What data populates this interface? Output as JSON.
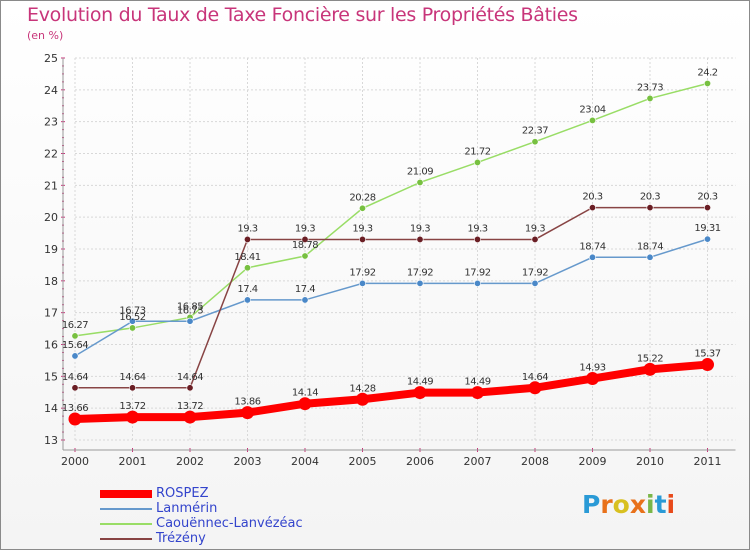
{
  "title": "Evolution du Taux de Taxe Foncière sur les Propriétés Bâties",
  "subtitle": "(en %)",
  "brand": {
    "letters": [
      "P",
      "r",
      "o",
      "x",
      "i",
      "t",
      "i"
    ],
    "colors": [
      "#2a9ad6",
      "#e8711a",
      "#d8c020",
      "#e8711a",
      "#7ab648",
      "#2a9ad6",
      "#e84a1a"
    ]
  },
  "chart_data": {
    "type": "line",
    "x": [
      "2000",
      "2001",
      "2002",
      "2003",
      "2004",
      "2005",
      "2006",
      "2007",
      "2008",
      "2009",
      "2010",
      "2011"
    ],
    "ylim": [
      13,
      25
    ],
    "yticks": [
      "13",
      "14",
      "15",
      "16",
      "17",
      "18",
      "19",
      "20",
      "21",
      "22",
      "23",
      "24",
      "25"
    ],
    "grid": true,
    "legend_position": "bottom-left",
    "series": [
      {
        "name": "Caouënnec-Lanvézéac",
        "color": "#99dd66",
        "marker": "#77c040",
        "values": [
          16.27,
          16.52,
          16.85,
          18.41,
          18.78,
          20.28,
          21.09,
          21.72,
          22.37,
          23.04,
          23.73,
          24.2
        ],
        "labels": [
          "16.27",
          "16.52",
          "16.85",
          "18.41",
          "18.78",
          "20.28",
          "21.09",
          "21.72",
          "22.37",
          "23.04",
          "23.73",
          "24.2"
        ]
      },
      {
        "name": "Lanmérin",
        "color": "#6699cc",
        "marker": "#4a88c8",
        "values": [
          15.64,
          16.73,
          16.73,
          17.4,
          17.4,
          17.92,
          17.92,
          17.92,
          17.92,
          18.74,
          18.74,
          19.31
        ],
        "labels": [
          "15.64",
          "16.73",
          "16.73",
          "17.4",
          "17.4",
          "17.92",
          "17.92",
          "17.92",
          "17.92",
          "18.74",
          "18.74",
          "19.31"
        ]
      },
      {
        "name": "Trézény",
        "color": "#884444",
        "marker": "#6a1e24",
        "values": [
          14.64,
          14.64,
          14.64,
          19.3,
          19.3,
          19.3,
          19.3,
          19.3,
          19.3,
          20.3,
          20.3,
          20.3
        ],
        "labels": [
          "14.64",
          "14.64",
          "14.64",
          "19.3",
          "19.3",
          "19.3",
          "19.3",
          "19.3",
          "19.3",
          "20.3",
          "20.3",
          "20.3"
        ]
      },
      {
        "name": "ROSPEZ",
        "color": "#ff0000",
        "marker": "#ff0000",
        "thick": true,
        "values": [
          13.66,
          13.72,
          13.72,
          13.86,
          14.14,
          14.28,
          14.49,
          14.49,
          14.64,
          14.93,
          15.22,
          15.37
        ],
        "labels": [
          "13.66",
          "13.72",
          "13.72",
          "13.86",
          "14.14",
          "14.28",
          "14.49",
          "14.49",
          "14.64",
          "14.93",
          "15.22",
          "15.37"
        ]
      }
    ],
    "legend_order": [
      "ROSPEZ",
      "Lanmérin",
      "Caouënnec-Lanvézéac",
      "Trézény"
    ]
  }
}
